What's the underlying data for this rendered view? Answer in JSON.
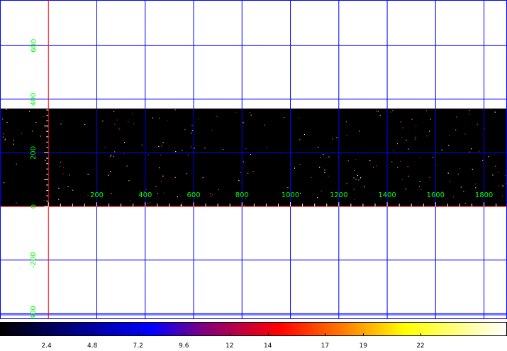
{
  "viewer": {
    "image_rows": [
      0,
      365
    ],
    "x_range": [
      -200,
      1895
    ],
    "y_range": [
      -420,
      770
    ],
    "grid_x": [
      0,
      200,
      400,
      600,
      800,
      1000,
      1200,
      1400,
      1600,
      1800
    ],
    "grid_y": [
      -400,
      -200,
      0,
      200,
      400,
      600
    ],
    "x_tick_labels": [
      "200",
      "400",
      "600",
      "800",
      "1000",
      "1200",
      "1400",
      "1600",
      "1800"
    ],
    "y_tick_labels": [
      "-400",
      "-200",
      "0",
      "200",
      "400",
      "600"
    ],
    "colors": {
      "grid": "#0000ff",
      "axis": "#ff0000",
      "tick_label": "#00ff00",
      "image_bg": "#000000"
    }
  },
  "colorbar": {
    "labels": [
      "2.4",
      "4.8",
      "7.2",
      "9.6",
      "12",
      "14",
      "17",
      "19",
      "22"
    ],
    "min": 0,
    "max": 26.5,
    "colormap": "heat (black-blue-red-yellow-white)"
  }
}
